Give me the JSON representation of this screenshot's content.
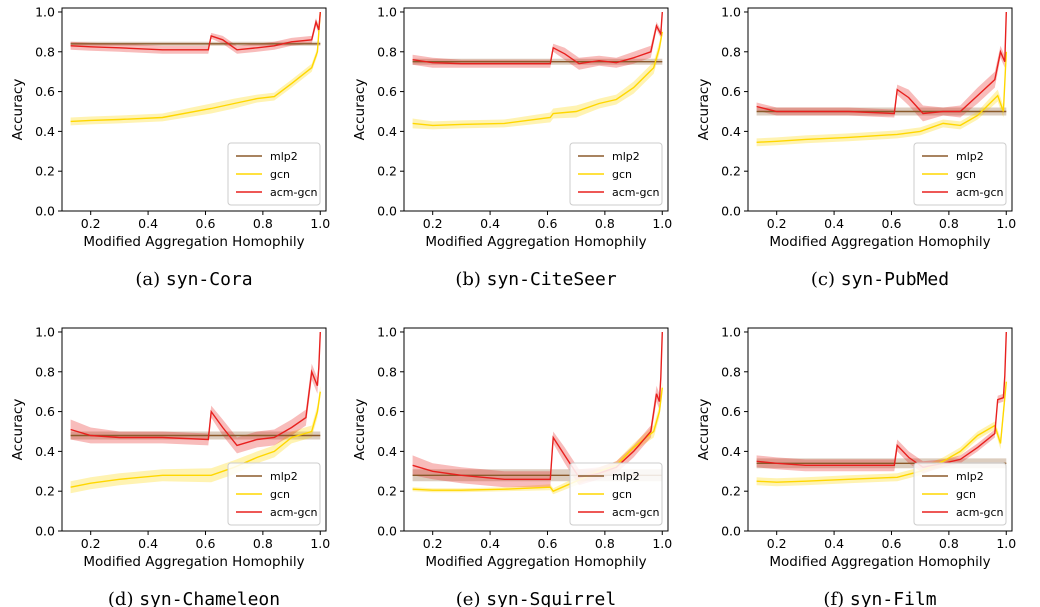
{
  "colors": {
    "mlp2": "#8b5a2b",
    "gcn": "#ffd700",
    "acm-gcn": "#e8201e"
  },
  "chart_data": [
    {
      "type": "line",
      "caption": {
        "letter": "(a)",
        "dataset": "syn-Cora"
      },
      "xlabel": "Modified Aggregation Homophily",
      "ylabel": "Accuracy",
      "xlim": [
        0.1,
        1.02
      ],
      "ylim": [
        0.0,
        1.02
      ],
      "xticks": [
        0.2,
        0.4,
        0.6,
        0.8,
        1.0
      ],
      "yticks": [
        0.0,
        0.2,
        0.4,
        0.6,
        0.8,
        1.0
      ],
      "legend": "bottom-right",
      "series": [
        {
          "name": "mlp2",
          "x": [
            0.13,
            1.0
          ],
          "y": [
            0.84,
            0.84
          ],
          "err": [
            0.01,
            0.01
          ]
        },
        {
          "name": "gcn",
          "x": [
            0.13,
            0.2,
            0.3,
            0.45,
            0.62,
            0.7,
            0.78,
            0.84,
            0.9,
            0.97,
            0.99,
            1.0
          ],
          "y": [
            0.45,
            0.455,
            0.46,
            0.47,
            0.515,
            0.54,
            0.565,
            0.575,
            0.64,
            0.72,
            0.8,
            1.0
          ],
          "err": [
            0.02,
            0.02,
            0.02,
            0.02,
            0.025,
            0.025,
            0.02,
            0.02,
            0.02,
            0.02,
            0.02,
            0.0
          ]
        },
        {
          "name": "acm-gcn",
          "x": [
            0.13,
            0.2,
            0.3,
            0.45,
            0.61,
            0.62,
            0.66,
            0.71,
            0.78,
            0.84,
            0.9,
            0.97,
            0.985,
            0.995,
            1.0
          ],
          "y": [
            0.83,
            0.825,
            0.82,
            0.81,
            0.81,
            0.88,
            0.86,
            0.81,
            0.82,
            0.83,
            0.85,
            0.86,
            0.95,
            0.91,
            1.0
          ],
          "err": [
            0.02,
            0.02,
            0.02,
            0.02,
            0.02,
            0.015,
            0.02,
            0.02,
            0.02,
            0.02,
            0.02,
            0.02,
            0.02,
            0.02,
            0.0
          ]
        }
      ]
    },
    {
      "type": "line",
      "caption": {
        "letter": "(b)",
        "dataset": "syn-CiteSeer"
      },
      "xlabel": "Modified Aggregation Homophily",
      "ylabel": "Accuracy",
      "xlim": [
        0.1,
        1.02
      ],
      "ylim": [
        0.0,
        1.02
      ],
      "xticks": [
        0.2,
        0.4,
        0.6,
        0.8,
        1.0
      ],
      "yticks": [
        0.0,
        0.2,
        0.4,
        0.6,
        0.8,
        1.0
      ],
      "legend": "bottom-right",
      "series": [
        {
          "name": "mlp2",
          "x": [
            0.13,
            1.0
          ],
          "y": [
            0.75,
            0.75
          ],
          "err": [
            0.015,
            0.015
          ]
        },
        {
          "name": "gcn",
          "x": [
            0.13,
            0.2,
            0.3,
            0.45,
            0.61,
            0.62,
            0.7,
            0.78,
            0.84,
            0.9,
            0.97,
            0.99,
            1.0
          ],
          "y": [
            0.44,
            0.43,
            0.435,
            0.44,
            0.47,
            0.49,
            0.5,
            0.54,
            0.56,
            0.62,
            0.72,
            0.82,
            0.9
          ],
          "err": [
            0.025,
            0.02,
            0.02,
            0.02,
            0.025,
            0.025,
            0.03,
            0.025,
            0.025,
            0.03,
            0.03,
            0.03,
            0.02
          ]
        },
        {
          "name": "acm-gcn",
          "x": [
            0.13,
            0.2,
            0.3,
            0.45,
            0.61,
            0.62,
            0.66,
            0.71,
            0.78,
            0.84,
            0.9,
            0.96,
            0.98,
            0.995,
            1.0
          ],
          "y": [
            0.76,
            0.745,
            0.74,
            0.74,
            0.74,
            0.82,
            0.79,
            0.74,
            0.755,
            0.745,
            0.77,
            0.8,
            0.93,
            0.89,
            1.0
          ],
          "err": [
            0.025,
            0.025,
            0.02,
            0.02,
            0.02,
            0.02,
            0.03,
            0.03,
            0.025,
            0.025,
            0.03,
            0.03,
            0.02,
            0.02,
            0.0
          ]
        }
      ]
    },
    {
      "type": "line",
      "caption": {
        "letter": "(c)",
        "dataset": "syn-PubMed"
      },
      "xlabel": "Modified Aggregation Homophily",
      "ylabel": "Accuracy",
      "xlim": [
        0.1,
        1.02
      ],
      "ylim": [
        0.0,
        1.02
      ],
      "xticks": [
        0.2,
        0.4,
        0.6,
        0.8,
        1.0
      ],
      "yticks": [
        0.0,
        0.2,
        0.4,
        0.6,
        0.8,
        1.0
      ],
      "legend": "bottom-right",
      "series": [
        {
          "name": "mlp2",
          "x": [
            0.13,
            1.0
          ],
          "y": [
            0.5,
            0.5
          ],
          "err": [
            0.02,
            0.02
          ]
        },
        {
          "name": "gcn",
          "x": [
            0.13,
            0.2,
            0.3,
            0.45,
            0.62,
            0.7,
            0.78,
            0.84,
            0.9,
            0.97,
            0.99,
            1.0
          ],
          "y": [
            0.345,
            0.35,
            0.36,
            0.37,
            0.385,
            0.4,
            0.44,
            0.43,
            0.48,
            0.58,
            0.5,
            0.8
          ],
          "err": [
            0.02,
            0.02,
            0.02,
            0.02,
            0.02,
            0.02,
            0.02,
            0.02,
            0.02,
            0.03,
            0.03,
            0.03
          ]
        },
        {
          "name": "acm-gcn",
          "x": [
            0.13,
            0.2,
            0.3,
            0.45,
            0.61,
            0.62,
            0.66,
            0.71,
            0.78,
            0.84,
            0.9,
            0.96,
            0.98,
            0.995,
            1.0
          ],
          "y": [
            0.525,
            0.5,
            0.5,
            0.5,
            0.49,
            0.61,
            0.57,
            0.49,
            0.5,
            0.5,
            0.58,
            0.66,
            0.8,
            0.75,
            1.0
          ],
          "err": [
            0.02,
            0.02,
            0.02,
            0.02,
            0.02,
            0.025,
            0.04,
            0.04,
            0.02,
            0.03,
            0.04,
            0.04,
            0.03,
            0.03,
            0.0
          ]
        }
      ]
    },
    {
      "type": "line",
      "caption": {
        "letter": "(d)",
        "dataset": "syn-Chameleon"
      },
      "xlabel": "Modified Aggregation Homophily",
      "ylabel": "Accuracy",
      "xlim": [
        0.1,
        1.02
      ],
      "ylim": [
        0.0,
        1.02
      ],
      "xticks": [
        0.2,
        0.4,
        0.6,
        0.8,
        1.0
      ],
      "yticks": [
        0.0,
        0.2,
        0.4,
        0.6,
        0.8,
        1.0
      ],
      "legend": "bottom-right",
      "series": [
        {
          "name": "mlp2",
          "x": [
            0.13,
            1.0
          ],
          "y": [
            0.48,
            0.48
          ],
          "err": [
            0.02,
            0.02
          ]
        },
        {
          "name": "gcn",
          "x": [
            0.13,
            0.2,
            0.3,
            0.45,
            0.62,
            0.7,
            0.78,
            0.84,
            0.9,
            0.97,
            0.99,
            1.0
          ],
          "y": [
            0.22,
            0.24,
            0.26,
            0.28,
            0.28,
            0.32,
            0.37,
            0.4,
            0.47,
            0.5,
            0.6,
            0.7
          ],
          "err": [
            0.03,
            0.03,
            0.03,
            0.03,
            0.035,
            0.035,
            0.03,
            0.03,
            0.03,
            0.03,
            0.03,
            0.03
          ]
        },
        {
          "name": "acm-gcn",
          "x": [
            0.13,
            0.2,
            0.3,
            0.45,
            0.61,
            0.62,
            0.66,
            0.71,
            0.78,
            0.84,
            0.9,
            0.95,
            0.97,
            0.99,
            0.995,
            1.0
          ],
          "y": [
            0.51,
            0.48,
            0.47,
            0.47,
            0.46,
            0.6,
            0.52,
            0.43,
            0.46,
            0.47,
            0.52,
            0.57,
            0.8,
            0.73,
            0.82,
            1.0
          ],
          "err": [
            0.05,
            0.04,
            0.03,
            0.03,
            0.03,
            0.03,
            0.04,
            0.04,
            0.04,
            0.04,
            0.04,
            0.04,
            0.04,
            0.04,
            0.03,
            0.0
          ]
        }
      ]
    },
    {
      "type": "line",
      "caption": {
        "letter": "(e)",
        "dataset": "syn-Squirrel"
      },
      "xlabel": "Modified Aggregation Homophily",
      "ylabel": "Accuracy",
      "xlim": [
        0.1,
        1.02
      ],
      "ylim": [
        0.0,
        1.02
      ],
      "xticks": [
        0.2,
        0.4,
        0.6,
        0.8,
        1.0
      ],
      "yticks": [
        0.0,
        0.2,
        0.4,
        0.6,
        0.8,
        1.0
      ],
      "legend": "bottom-right",
      "series": [
        {
          "name": "mlp2",
          "x": [
            0.13,
            1.0
          ],
          "y": [
            0.28,
            0.28
          ],
          "err": [
            0.03,
            0.03
          ]
        },
        {
          "name": "gcn",
          "x": [
            0.13,
            0.2,
            0.3,
            0.45,
            0.61,
            0.62,
            0.7,
            0.78,
            0.84,
            0.9,
            0.97,
            0.99,
            1.0
          ],
          "y": [
            0.21,
            0.205,
            0.205,
            0.21,
            0.22,
            0.2,
            0.25,
            0.3,
            0.33,
            0.42,
            0.5,
            0.6,
            0.72
          ],
          "err": [
            0.01,
            0.01,
            0.01,
            0.01,
            0.015,
            0.015,
            0.02,
            0.02,
            0.02,
            0.02,
            0.03,
            0.03,
            0.03
          ]
        },
        {
          "name": "acm-gcn",
          "x": [
            0.13,
            0.2,
            0.3,
            0.45,
            0.61,
            0.62,
            0.66,
            0.71,
            0.78,
            0.84,
            0.9,
            0.96,
            0.98,
            0.99,
            0.995,
            1.0
          ],
          "y": [
            0.33,
            0.3,
            0.28,
            0.26,
            0.26,
            0.47,
            0.38,
            0.27,
            0.29,
            0.32,
            0.4,
            0.5,
            0.69,
            0.65,
            0.77,
            1.0
          ],
          "err": [
            0.05,
            0.04,
            0.04,
            0.04,
            0.04,
            0.03,
            0.04,
            0.04,
            0.03,
            0.03,
            0.03,
            0.03,
            0.04,
            0.04,
            0.03,
            0.0
          ]
        }
      ]
    },
    {
      "type": "line",
      "caption": {
        "letter": "(f)",
        "dataset": "syn-Film"
      },
      "xlabel": "Modified Aggregation Homophily",
      "ylabel": "Accuracy",
      "xlim": [
        0.1,
        1.02
      ],
      "ylim": [
        0.0,
        1.02
      ],
      "xticks": [
        0.2,
        0.4,
        0.6,
        0.8,
        1.0
      ],
      "yticks": [
        0.0,
        0.2,
        0.4,
        0.6,
        0.8,
        1.0
      ],
      "legend": "bottom-right",
      "series": [
        {
          "name": "mlp2",
          "x": [
            0.13,
            1.0
          ],
          "y": [
            0.34,
            0.34
          ],
          "err": [
            0.025,
            0.025
          ]
        },
        {
          "name": "gcn",
          "x": [
            0.13,
            0.2,
            0.3,
            0.45,
            0.62,
            0.7,
            0.78,
            0.84,
            0.9,
            0.96,
            0.98,
            1.0
          ],
          "y": [
            0.25,
            0.245,
            0.25,
            0.26,
            0.27,
            0.3,
            0.35,
            0.4,
            0.48,
            0.53,
            0.44,
            0.75
          ],
          "err": [
            0.02,
            0.02,
            0.02,
            0.02,
            0.02,
            0.02,
            0.02,
            0.02,
            0.02,
            0.02,
            0.03,
            0.03
          ]
        },
        {
          "name": "acm-gcn",
          "x": [
            0.13,
            0.2,
            0.3,
            0.45,
            0.61,
            0.62,
            0.66,
            0.71,
            0.78,
            0.84,
            0.9,
            0.96,
            0.97,
            0.99,
            0.995,
            1.0
          ],
          "y": [
            0.35,
            0.34,
            0.33,
            0.33,
            0.33,
            0.43,
            0.37,
            0.32,
            0.34,
            0.36,
            0.42,
            0.49,
            0.66,
            0.67,
            0.78,
            1.0
          ],
          "err": [
            0.03,
            0.03,
            0.03,
            0.03,
            0.03,
            0.03,
            0.03,
            0.03,
            0.02,
            0.02,
            0.02,
            0.02,
            0.02,
            0.02,
            0.02,
            0.0
          ]
        }
      ]
    }
  ]
}
